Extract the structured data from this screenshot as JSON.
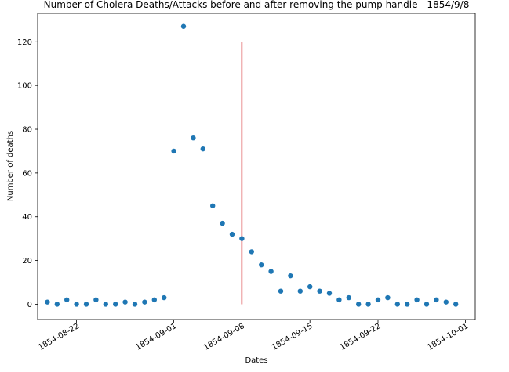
{
  "chart_data": {
    "type": "scatter",
    "title": "Number of Cholera Deaths/Attacks before and after removing the pump handle - 1854/9/8",
    "xlabel": "Dates",
    "ylabel": "Number of deaths",
    "x_type": "date",
    "xlim": [
      "1854-08-18",
      "1854-10-02"
    ],
    "ylim": [
      -7,
      133
    ],
    "grid": false,
    "legend": false,
    "point_color": "#1f77b4",
    "line_color": "#d62728",
    "xticks": [
      "1854-08-22",
      "1854-09-01",
      "1854-09-08",
      "1854-09-15",
      "1854-09-22",
      "1854-10-01"
    ],
    "yticks": [
      0,
      20,
      40,
      60,
      80,
      100,
      120
    ],
    "series": [
      {
        "x": [
          "1854-08-19",
          "1854-08-20",
          "1854-08-21",
          "1854-08-22",
          "1854-08-23",
          "1854-08-24",
          "1854-08-25",
          "1854-08-26",
          "1854-08-27",
          "1854-08-28",
          "1854-08-29",
          "1854-08-30",
          "1854-08-31",
          "1854-09-01",
          "1854-09-02",
          "1854-09-03",
          "1854-09-04",
          "1854-09-05",
          "1854-09-06",
          "1854-09-07",
          "1854-09-08",
          "1854-09-09",
          "1854-09-10",
          "1854-09-11",
          "1854-09-12",
          "1854-09-13",
          "1854-09-14",
          "1854-09-15",
          "1854-09-16",
          "1854-09-17",
          "1854-09-18",
          "1854-09-19",
          "1854-09-20",
          "1854-09-21",
          "1854-09-22",
          "1854-09-23",
          "1854-09-24",
          "1854-09-25",
          "1854-09-26",
          "1854-09-27",
          "1854-09-28",
          "1854-09-29",
          "1854-09-30"
        ],
        "y": [
          1,
          0,
          2,
          0,
          0,
          2,
          0,
          0,
          1,
          0,
          1,
          2,
          3,
          70,
          127,
          76,
          71,
          45,
          37,
          32,
          30,
          24,
          18,
          15,
          6,
          13,
          6,
          8,
          6,
          5,
          2,
          3,
          0,
          0,
          2,
          3,
          0,
          0,
          2,
          0,
          2,
          1,
          0
        ]
      }
    ],
    "vline": {
      "x": "1854-09-08",
      "ymin": 0,
      "ymax": 120
    }
  }
}
